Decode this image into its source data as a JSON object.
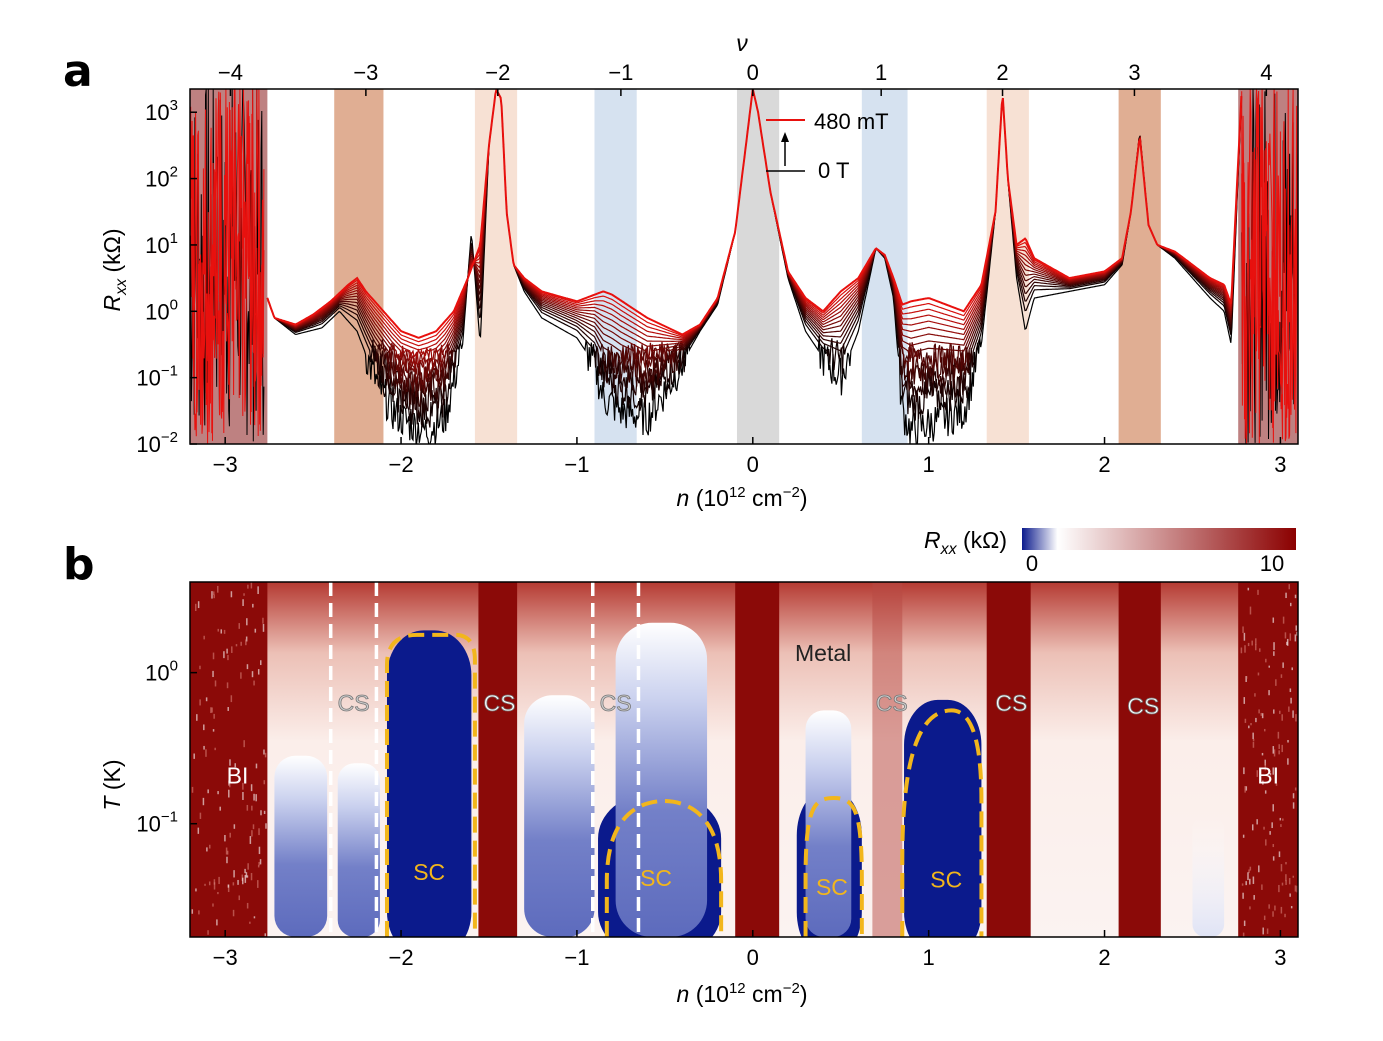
{
  "panels": {
    "a": "a",
    "b": "b"
  },
  "chart_data": [
    {
      "type": "line",
      "panel": "a",
      "xlabel": "n (10^12 cm^-2)",
      "xlabel_parts": {
        "italic": "n",
        "prefix": " (10",
        "sup1": "12",
        "mid": " cm",
        "sup2": "−2",
        "suffix": ")"
      },
      "ylabel_parts": {
        "base": "R",
        "sub": "xx",
        "suffix": " (kΩ)"
      },
      "top_axis_label": "ν",
      "xlim": [
        -3.2,
        3.1
      ],
      "ylim_log10": [
        -2,
        3.35
      ],
      "yscale": "log",
      "x_ticks": [
        "−3",
        "−2",
        "−1",
        "0",
        "1",
        "2",
        "3"
      ],
      "x_tick_values": [
        -3,
        -2,
        -1,
        0,
        1,
        2,
        3
      ],
      "y_ticks": [
        {
          "base": "10",
          "exp": "3",
          "value": 3
        },
        {
          "base": "10",
          "exp": "2",
          "value": 2
        },
        {
          "base": "10",
          "exp": "1",
          "value": 1
        },
        {
          "base": "10",
          "exp": "0",
          "value": 0
        },
        {
          "base": "10",
          "exp": "−1",
          "value": -1
        },
        {
          "base": "10",
          "exp": "−2",
          "value": -2
        }
      ],
      "top_ticks": [
        {
          "label": "−4",
          "n": -2.97
        },
        {
          "label": "−3",
          "n": -2.2
        },
        {
          "label": "−2",
          "n": -1.45
        },
        {
          "label": "−1",
          "n": -0.75
        },
        {
          "label": "0",
          "n": 0.0
        },
        {
          "label": "1",
          "n": 0.73
        },
        {
          "label": "2",
          "n": 1.42
        },
        {
          "label": "3",
          "n": 2.17
        },
        {
          "label": "4",
          "n": 2.92
        }
      ],
      "shaded_bands": [
        {
          "from": -3.2,
          "to": -2.76,
          "color": "#b36b6b"
        },
        {
          "from": -2.38,
          "to": -2.1,
          "color": "#dba080"
        },
        {
          "from": -1.58,
          "to": -1.34,
          "color": "#f6dccc"
        },
        {
          "from": -0.9,
          "to": -0.66,
          "color": "#cfdded"
        },
        {
          "from": -0.09,
          "to": 0.15,
          "color": "#d2d2d2"
        },
        {
          "from": 0.62,
          "to": 0.88,
          "color": "#cfdded"
        },
        {
          "from": 1.33,
          "to": 1.57,
          "color": "#f6dccc"
        },
        {
          "from": 2.08,
          "to": 2.32,
          "color": "#dba080"
        },
        {
          "from": 2.76,
          "to": 3.1,
          "color": "#b36b6b"
        }
      ],
      "field_range": {
        "low": "0 T",
        "high": "480 mT",
        "steps": 14
      },
      "curve_colors": {
        "low": "#000000",
        "high": "#e8110e"
      },
      "legend": [
        "480 mT",
        "0 T"
      ],
      "series_high": {
        "name": "480 mT",
        "x": [
          -2.76,
          -2.72,
          -2.6,
          -2.5,
          -2.4,
          -2.3,
          -2.25,
          -2.2,
          -2.1,
          -2.0,
          -1.9,
          -1.8,
          -1.7,
          -1.62,
          -1.55,
          -1.5,
          -1.46,
          -1.43,
          -1.4,
          -1.36,
          -1.3,
          -1.2,
          -1.0,
          -0.85,
          -0.8,
          -0.6,
          -0.4,
          -0.3,
          -0.2,
          -0.1,
          -0.03,
          0.0,
          0.03,
          0.1,
          0.2,
          0.3,
          0.4,
          0.5,
          0.6,
          0.7,
          0.75,
          0.8,
          0.85,
          0.9,
          1.0,
          1.1,
          1.2,
          1.3,
          1.38,
          1.42,
          1.45,
          1.5,
          1.55,
          1.6,
          1.8,
          2.0,
          2.1,
          2.15,
          2.2,
          2.25,
          2.3,
          2.4,
          2.5,
          2.6,
          2.68,
          2.72,
          2.78
        ],
        "log10_y": [
          0.2,
          -0.1,
          -0.2,
          -0.05,
          0.15,
          0.4,
          0.5,
          0.3,
          0.0,
          -0.3,
          -0.4,
          -0.3,
          0.0,
          0.5,
          1.0,
          2.5,
          3.35,
          3.2,
          1.5,
          0.7,
          0.5,
          0.3,
          0.15,
          0.3,
          0.25,
          -0.1,
          -0.35,
          -0.2,
          0.2,
          1.2,
          2.7,
          3.35,
          3.0,
          1.8,
          0.6,
          0.2,
          0.0,
          0.3,
          0.5,
          0.95,
          0.85,
          0.5,
          0.1,
          0.15,
          0.2,
          0.1,
          0.0,
          0.4,
          1.5,
          3.3,
          2.0,
          1.0,
          1.1,
          0.8,
          0.5,
          0.6,
          0.8,
          1.5,
          2.65,
          1.3,
          1.0,
          0.9,
          0.7,
          0.5,
          0.4,
          0.1,
          3.35
        ]
      },
      "series_low": {
        "name": "0 T",
        "x": [
          -2.76,
          -2.72,
          -2.6,
          -2.45,
          -2.35,
          -2.25,
          -2.15,
          -2.05,
          -1.95,
          -1.85,
          -1.75,
          -1.65,
          -1.6,
          -1.55,
          -1.5,
          -1.46,
          -1.43,
          -1.4,
          -1.36,
          -1.3,
          -1.2,
          -1.0,
          -0.9,
          -0.85,
          -0.75,
          -0.6,
          -0.45,
          -0.3,
          -0.2,
          -0.1,
          -0.03,
          0.0,
          0.03,
          0.1,
          0.2,
          0.3,
          0.4,
          0.5,
          0.6,
          0.7,
          0.75,
          0.8,
          0.85,
          0.9,
          1.0,
          1.1,
          1.2,
          1.3,
          1.38,
          1.42,
          1.45,
          1.5,
          1.55,
          1.6,
          1.8,
          2.0,
          2.1,
          2.15,
          2.2,
          2.25,
          2.3,
          2.4,
          2.5,
          2.6,
          2.68,
          2.72,
          2.78
        ],
        "log10_y": [
          0.2,
          -0.1,
          -0.35,
          -0.25,
          0.0,
          -0.3,
          -1.0,
          -1.5,
          -1.7,
          -1.8,
          -1.6,
          -0.5,
          1.2,
          -0.5,
          2.5,
          3.35,
          3.2,
          1.5,
          0.7,
          0.3,
          -0.1,
          -0.4,
          -0.8,
          -1.3,
          -1.5,
          -1.6,
          -1.0,
          -0.3,
          0.1,
          1.2,
          2.7,
          3.35,
          3.0,
          1.8,
          0.5,
          -0.3,
          -0.7,
          -1.0,
          -0.3,
          0.95,
          0.8,
          0.2,
          -1.5,
          -1.8,
          -1.7,
          -1.6,
          -1.5,
          -0.5,
          1.5,
          3.3,
          2.0,
          0.5,
          -0.3,
          0.2,
          0.3,
          0.4,
          0.7,
          1.5,
          2.7,
          1.3,
          1.0,
          0.8,
          0.5,
          0.2,
          0.0,
          -0.5,
          3.35
        ]
      }
    },
    {
      "type": "heatmap",
      "panel": "b",
      "xlabel_parts": {
        "italic": "n",
        "prefix": " (10",
        "sup1": "12",
        "mid": " cm",
        "sup2": "−2",
        "suffix": ")"
      },
      "ylabel_parts": {
        "italic": "T",
        "suffix": " (K)"
      },
      "xlim": [
        -3.2,
        3.1
      ],
      "ylim_log10": [
        -1.75,
        0.6
      ],
      "yscale": "log",
      "x_ticks": [
        "−3",
        "−2",
        "−1",
        "0",
        "1",
        "2",
        "3"
      ],
      "x_tick_values": [
        -3,
        -2,
        -1,
        0,
        1,
        2,
        3
      ],
      "y_ticks": [
        {
          "base": "10",
          "exp": "0",
          "value": 0
        },
        {
          "base": "10",
          "exp": "−1",
          "value": -1
        }
      ],
      "colorbar": {
        "label_base": "R",
        "label_sub": "xx",
        "label_suffix": " (kΩ)",
        "min": "0",
        "max": "10",
        "colors": [
          "#0b1a8c",
          "#ffffff",
          "#8b0000"
        ]
      },
      "columns": [
        {
          "from": -3.2,
          "to": -2.76,
          "type": "high"
        },
        {
          "from": -2.72,
          "to": -2.42,
          "type": "low",
          "top": -0.55
        },
        {
          "from": -2.36,
          "to": -2.12,
          "type": "low",
          "top": -0.6
        },
        {
          "from": -2.08,
          "to": -1.6,
          "type": "sc",
          "top": 0.28
        },
        {
          "from": -1.56,
          "to": -1.34,
          "type": "high"
        },
        {
          "from": -1.3,
          "to": -0.9,
          "type": "low",
          "top": -0.15
        },
        {
          "from": -0.88,
          "to": -0.18,
          "type": "sc",
          "top": -0.8
        },
        {
          "from": -0.78,
          "to": -0.26,
          "type": "low",
          "top": 0.33
        },
        {
          "from": -0.1,
          "to": 0.15,
          "type": "high"
        },
        {
          "from": 0.25,
          "to": 0.62,
          "type": "sc",
          "top": -0.78
        },
        {
          "from": 0.3,
          "to": 0.56,
          "type": "low",
          "top": -0.25
        },
        {
          "from": 0.68,
          "to": 0.85,
          "type": "high_soft"
        },
        {
          "from": 0.86,
          "to": 1.3,
          "type": "sc",
          "top": -0.18
        },
        {
          "from": 1.33,
          "to": 1.58,
          "type": "high"
        },
        {
          "from": 2.08,
          "to": 2.32,
          "type": "high"
        },
        {
          "from": 2.5,
          "to": 2.68,
          "type": "low_soft",
          "top": -0.95
        },
        {
          "from": 2.76,
          "to": 3.1,
          "type": "high"
        }
      ],
      "sc_domes": [
        {
          "from": -2.08,
          "to": -1.58,
          "top": 0.25,
          "flat": true
        },
        {
          "from": -0.83,
          "to": -0.18,
          "top": -0.85
        },
        {
          "from": 0.3,
          "to": 0.62,
          "top": -0.83
        },
        {
          "from": 0.85,
          "to": 1.3,
          "top": -0.25,
          "skew": 1.13
        }
      ],
      "dashed_lines": [
        -2.4,
        -2.14,
        -0.91,
        -0.65
      ],
      "labels": [
        {
          "text": "BI",
          "n": -2.93,
          "logT": -0.68,
          "color": "#ffffff"
        },
        {
          "text": "CS",
          "n": -2.27,
          "logT": -0.2,
          "color": "#cccccc"
        },
        {
          "text": "CS",
          "n": -1.44,
          "logT": -0.2,
          "color": "#ffffff"
        },
        {
          "text": "CS",
          "n": -0.78,
          "logT": -0.2,
          "color": "#cccccc"
        },
        {
          "text": "CS",
          "n": 0.79,
          "logT": -0.2,
          "color": "#cccccc"
        },
        {
          "text": "CS",
          "n": 1.47,
          "logT": -0.2,
          "color": "#ffffff"
        },
        {
          "text": "CS",
          "n": 2.22,
          "logT": -0.22,
          "color": "#ffffff"
        },
        {
          "text": "BI",
          "n": 2.93,
          "logT": -0.68,
          "color": "#ffffff"
        },
        {
          "text": "Metal",
          "n": 0.4,
          "logT": 0.13,
          "color": "#222222"
        },
        {
          "text": "SC",
          "n": -1.84,
          "logT": -1.32,
          "color": "#f2b61c"
        },
        {
          "text": "SC",
          "n": -0.55,
          "logT": -1.36,
          "color": "#f2b61c"
        },
        {
          "text": "SC",
          "n": 0.45,
          "logT": -1.42,
          "color": "#f2b61c"
        },
        {
          "text": "SC",
          "n": 1.1,
          "logT": -1.37,
          "color": "#f2b61c"
        }
      ]
    }
  ]
}
